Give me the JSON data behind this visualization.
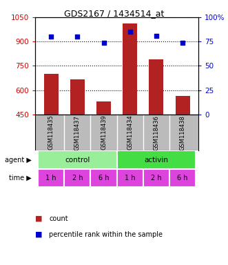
{
  "title": "GDS2167 / 1434514_at",
  "samples": [
    "GSM118435",
    "GSM118437",
    "GSM118439",
    "GSM118434",
    "GSM118436",
    "GSM118438"
  ],
  "counts": [
    700,
    665,
    530,
    1010,
    790,
    565
  ],
  "percentile_ranks": [
    80,
    80,
    74,
    85,
    81,
    74
  ],
  "ylim_left": [
    450,
    1050
  ],
  "ylim_right": [
    0,
    100
  ],
  "yticks_left": [
    450,
    600,
    750,
    900,
    1050
  ],
  "yticks_right": [
    0,
    25,
    50,
    75,
    100
  ],
  "bar_color": "#b22222",
  "dot_color": "#0000cc",
  "agent_labels": [
    "control",
    "activin"
  ],
  "agent_colors": [
    "#99ee99",
    "#44dd44"
  ],
  "time_labels": [
    "1 h",
    "2 h",
    "6 h",
    "1 h",
    "2 h",
    "6 h"
  ],
  "time_color": "#dd44dd",
  "sample_bg_color": "#bbbbbb",
  "grid_color": "#000000",
  "left_tick_color": "#cc0000",
  "right_tick_color": "#0000cc",
  "left_label": "agent",
  "time_label": "time"
}
